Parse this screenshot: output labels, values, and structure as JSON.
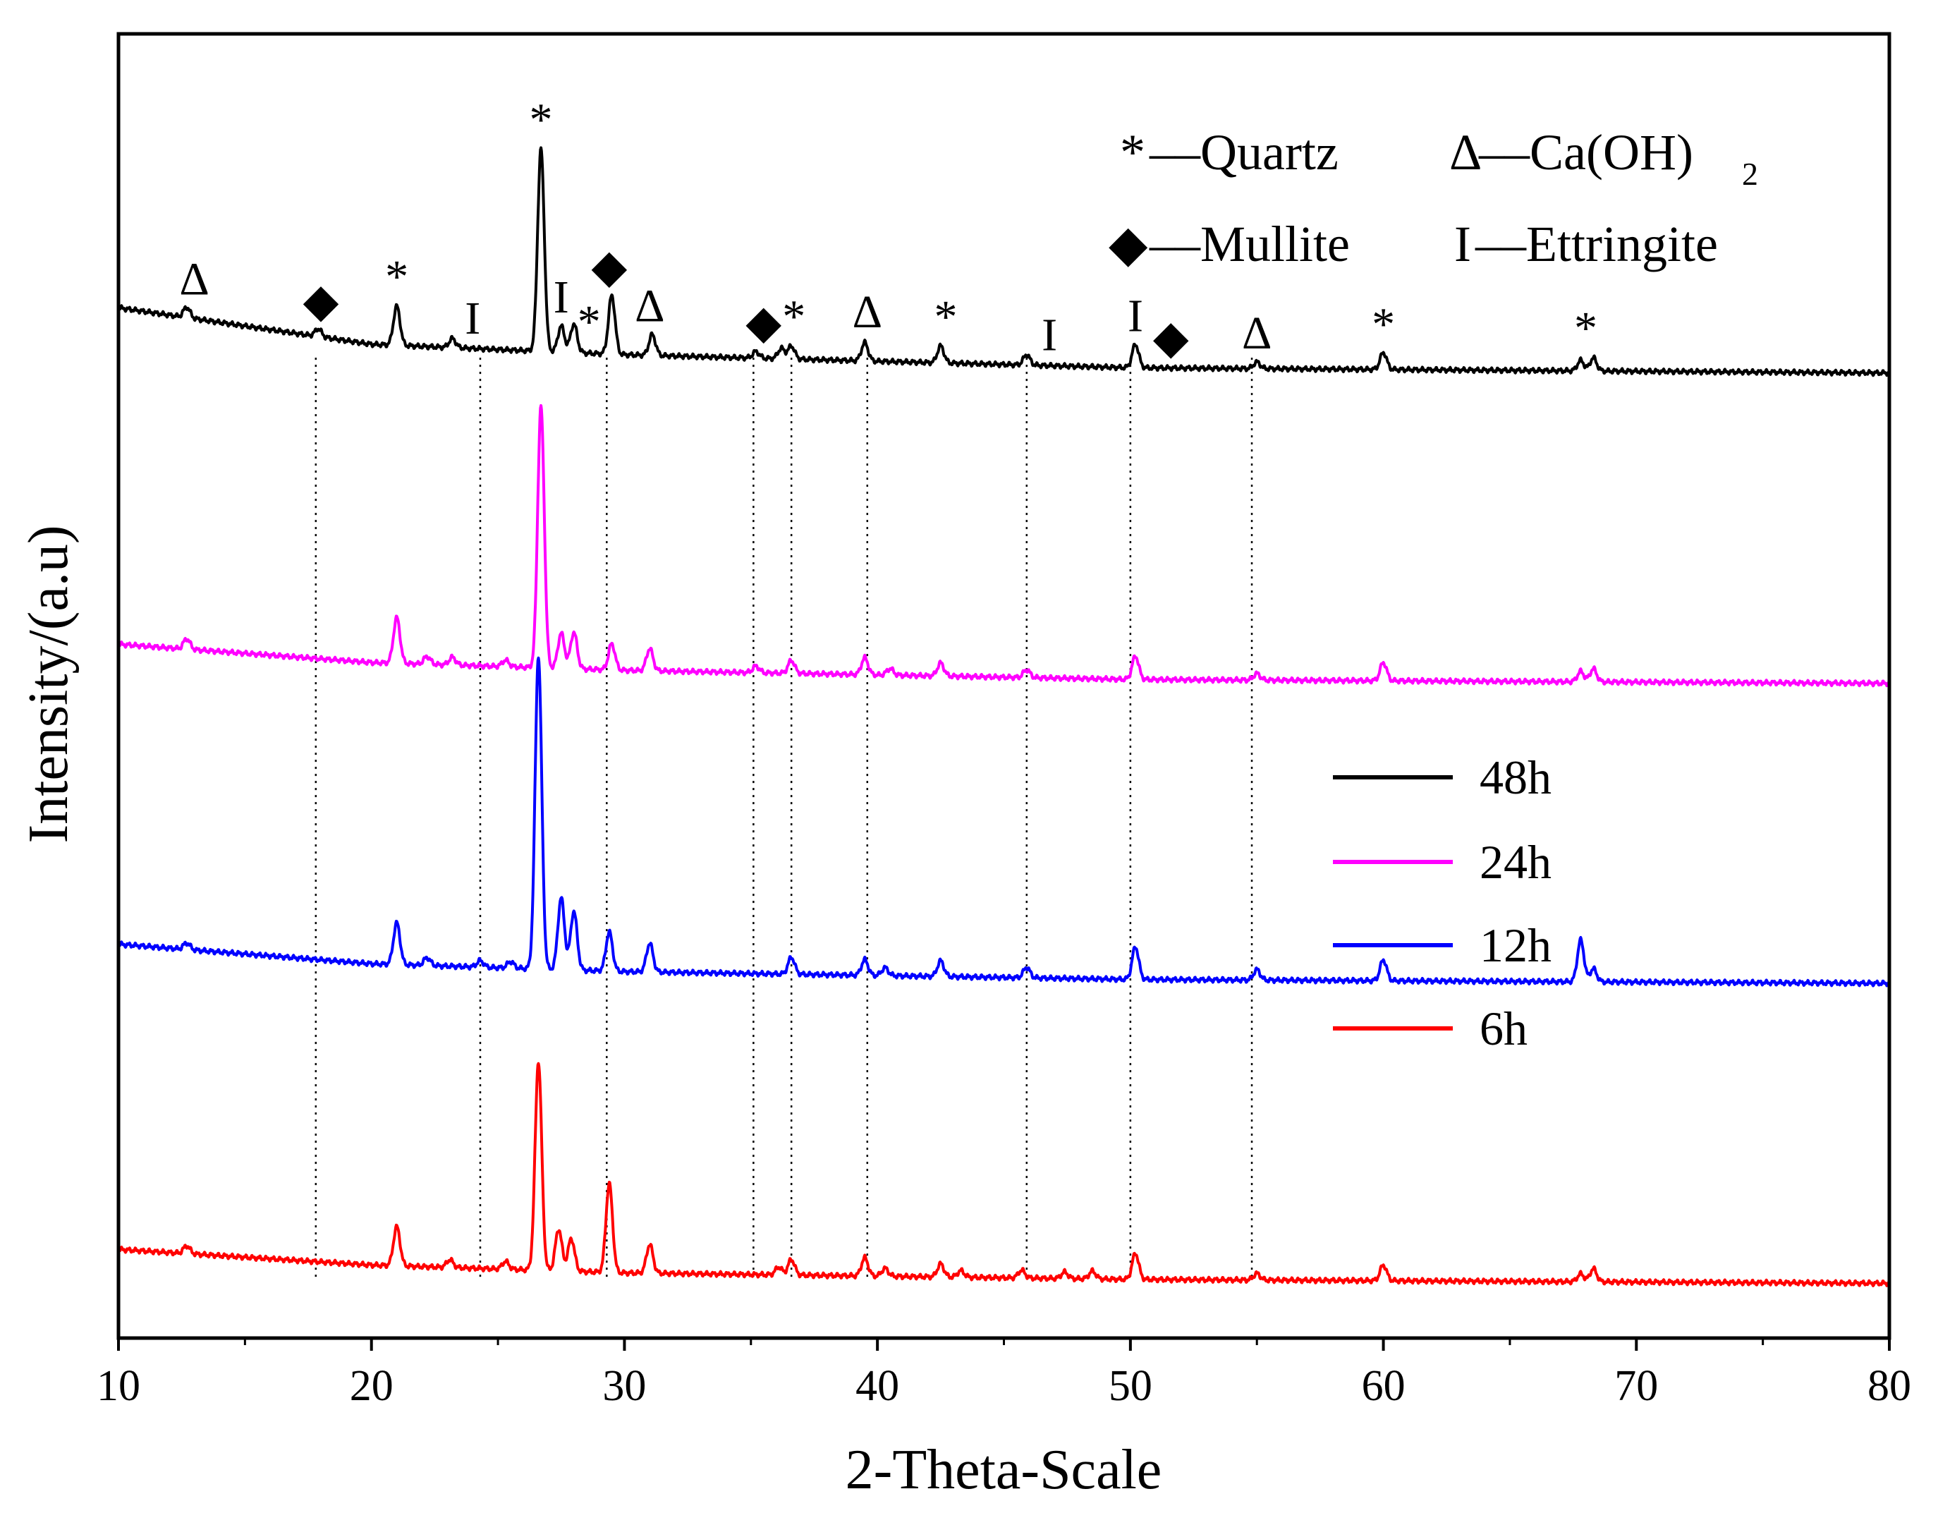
{
  "chart_data": {
    "type": "line",
    "title": "",
    "xlabel": "2-Theta-Scale",
    "ylabel": "Intensity/(a.u)",
    "xlim": [
      10,
      80
    ],
    "ylim": [
      0,
      10
    ],
    "xticks": [
      10,
      20,
      30,
      40,
      50,
      60,
      70,
      80
    ],
    "grid": false,
    "legend_position": "center-right",
    "series": [
      {
        "name": "48h",
        "color": "#000000",
        "offset": 7.4,
        "background": [
          [
            10,
            0.5
          ],
          [
            20,
            0.22
          ],
          [
            30,
            0.14
          ],
          [
            50,
            0.04
          ],
          [
            80,
            0.0
          ]
        ],
        "peaks": [
          [
            12.7,
            0.08
          ],
          [
            17.9,
            0.06
          ],
          [
            21.0,
            0.3
          ],
          [
            23.2,
            0.07
          ],
          [
            26.7,
            1.55
          ],
          [
            27.5,
            0.2
          ],
          [
            28.0,
            0.22
          ],
          [
            29.5,
            0.45
          ],
          [
            31.1,
            0.16
          ],
          [
            35.2,
            0.05
          ],
          [
            36.2,
            0.08
          ],
          [
            36.6,
            0.1
          ],
          [
            39.5,
            0.14
          ],
          [
            42.5,
            0.13
          ],
          [
            45.9,
            0.08
          ],
          [
            50.2,
            0.18
          ],
          [
            55.0,
            0.05
          ],
          [
            60.0,
            0.13
          ],
          [
            67.8,
            0.08
          ],
          [
            68.3,
            0.1
          ]
        ]
      },
      {
        "name": "24h",
        "color": "#ff00ff",
        "offset": 5.02,
        "background": [
          [
            10,
            0.3
          ],
          [
            20,
            0.16
          ],
          [
            30,
            0.1
          ],
          [
            50,
            0.03
          ],
          [
            80,
            0.0
          ]
        ],
        "peaks": [
          [
            12.7,
            0.08
          ],
          [
            21.0,
            0.35
          ],
          [
            22.2,
            0.06
          ],
          [
            23.2,
            0.06
          ],
          [
            25.3,
            0.05
          ],
          [
            26.7,
            2.0
          ],
          [
            27.5,
            0.27
          ],
          [
            28.0,
            0.28
          ],
          [
            29.5,
            0.2
          ],
          [
            31.0,
            0.17
          ],
          [
            35.2,
            0.05
          ],
          [
            36.6,
            0.1
          ],
          [
            39.5,
            0.13
          ],
          [
            40.5,
            0.05
          ],
          [
            42.5,
            0.1
          ],
          [
            45.9,
            0.06
          ],
          [
            50.2,
            0.18
          ],
          [
            55.0,
            0.05
          ],
          [
            60.0,
            0.14
          ],
          [
            67.8,
            0.08
          ],
          [
            68.3,
            0.1
          ]
        ]
      },
      {
        "name": "12h",
        "color": "#0000ff",
        "offset": 2.72,
        "background": [
          [
            10,
            0.3
          ],
          [
            20,
            0.15
          ],
          [
            30,
            0.09
          ],
          [
            50,
            0.03
          ],
          [
            80,
            0.0
          ]
        ],
        "peaks": [
          [
            12.7,
            0.05
          ],
          [
            21.0,
            0.32
          ],
          [
            22.2,
            0.06
          ],
          [
            24.3,
            0.05
          ],
          [
            25.5,
            0.05
          ],
          [
            26.6,
            2.4
          ],
          [
            27.5,
            0.55
          ],
          [
            28.0,
            0.45
          ],
          [
            29.4,
            0.3
          ],
          [
            31.0,
            0.22
          ],
          [
            36.6,
            0.13
          ],
          [
            39.5,
            0.12
          ],
          [
            40.3,
            0.06
          ],
          [
            42.5,
            0.12
          ],
          [
            45.9,
            0.08
          ],
          [
            50.2,
            0.25
          ],
          [
            55.0,
            0.08
          ],
          [
            60.0,
            0.16
          ],
          [
            67.8,
            0.32
          ],
          [
            68.3,
            0.1
          ]
        ]
      },
      {
        "name": "6h",
        "color": "#ff0000",
        "offset": 0.42,
        "background": [
          [
            10,
            0.26
          ],
          [
            20,
            0.14
          ],
          [
            30,
            0.08
          ],
          [
            50,
            0.03
          ],
          [
            80,
            0.0
          ]
        ],
        "peaks": [
          [
            12.7,
            0.06
          ],
          [
            21.0,
            0.3
          ],
          [
            23.1,
            0.06
          ],
          [
            25.3,
            0.06
          ],
          [
            26.6,
            1.6
          ],
          [
            27.4,
            0.32
          ],
          [
            27.9,
            0.25
          ],
          [
            29.4,
            0.68
          ],
          [
            31.0,
            0.22
          ],
          [
            36.1,
            0.06
          ],
          [
            36.6,
            0.12
          ],
          [
            39.5,
            0.14
          ],
          [
            40.3,
            0.06
          ],
          [
            42.5,
            0.1
          ],
          [
            43.3,
            0.05
          ],
          [
            45.7,
            0.06
          ],
          [
            47.4,
            0.05
          ],
          [
            48.5,
            0.06
          ],
          [
            50.2,
            0.2
          ],
          [
            55.0,
            0.05
          ],
          [
            60.0,
            0.12
          ],
          [
            67.8,
            0.06
          ],
          [
            68.3,
            0.1
          ]
        ]
      }
    ],
    "reference_lines": [
      17.8,
      24.3,
      29.3,
      35.1,
      36.6,
      39.6,
      45.9,
      50.0,
      54.8
    ],
    "peak_markers": [
      {
        "symbol": "Δ",
        "x": 13.0
      },
      {
        "symbol": "◆",
        "x": 18.0
      },
      {
        "symbol": "*",
        "x": 21.0
      },
      {
        "symbol": "I",
        "x": 24.0
      },
      {
        "symbol": "*",
        "x": 26.7
      },
      {
        "symbol": "I",
        "x": 27.5
      },
      {
        "symbol": "*",
        "x": 28.6
      },
      {
        "symbol": "◆",
        "x": 29.4
      },
      {
        "symbol": "Δ",
        "x": 31.0
      },
      {
        "symbol": "◆",
        "x": 35.5
      },
      {
        "symbol": "*",
        "x": 36.7
      },
      {
        "symbol": "Δ",
        "x": 39.6
      },
      {
        "symbol": "*",
        "x": 42.7
      },
      {
        "symbol": "I",
        "x": 46.8
      },
      {
        "symbol": "I",
        "x": 50.2
      },
      {
        "symbol": "◆",
        "x": 51.6
      },
      {
        "symbol": "Δ",
        "x": 55.0
      },
      {
        "symbol": "*",
        "x": 60.0
      },
      {
        "symbol": "*",
        "x": 68.0
      }
    ],
    "phase_key": [
      {
        "symbol": "*",
        "label": "––Quartz"
      },
      {
        "symbol": "Δ",
        "label": "––Ca(OH)",
        "subscript": "2"
      },
      {
        "symbol": "◆",
        "label": "––Mullite"
      },
      {
        "symbol": "I",
        "label": "––Ettringite"
      }
    ]
  }
}
